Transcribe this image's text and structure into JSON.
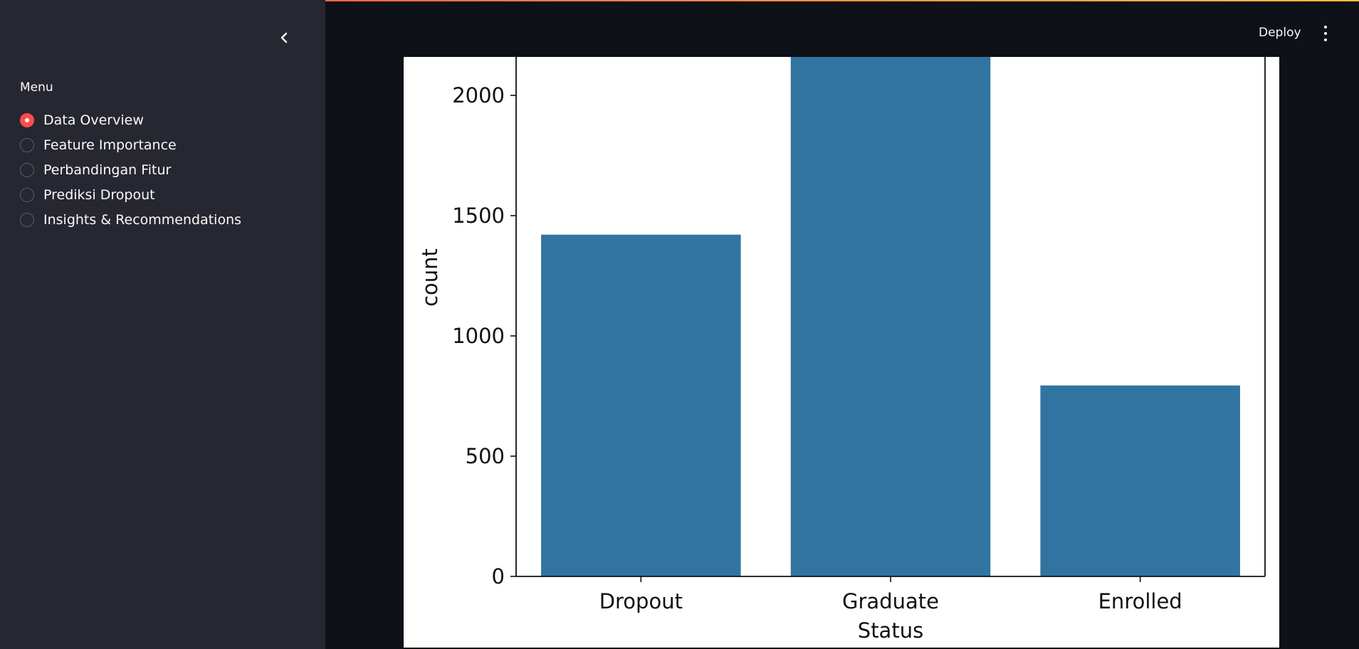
{
  "sidebar": {
    "menu_label": "Menu",
    "collapse_icon": "chevron-left-icon",
    "items": [
      {
        "label": "Data Overview",
        "selected": true
      },
      {
        "label": "Feature Importance",
        "selected": false
      },
      {
        "label": "Perbandingan Fitur",
        "selected": false
      },
      {
        "label": "Prediksi Dropout",
        "selected": false
      },
      {
        "label": "Insights & Recommendations",
        "selected": false
      }
    ]
  },
  "header": {
    "deploy_label": "Deploy",
    "menu_icon": "kebab-menu-icon"
  },
  "colors": {
    "accent": "#ff4b4b",
    "sidebar_bg": "#262730",
    "app_bg": "#0e1117",
    "bar": "#3274a1"
  },
  "chart_data": {
    "type": "bar",
    "categories": [
      "Dropout",
      "Graduate",
      "Enrolled"
    ],
    "values": [
      1421,
      2209,
      794
    ],
    "xlabel": "Status",
    "ylabel": "count",
    "yticks": [
      0,
      500,
      1000,
      1500,
      2000
    ],
    "ylim": [
      0,
      2160
    ],
    "grid": false
  }
}
